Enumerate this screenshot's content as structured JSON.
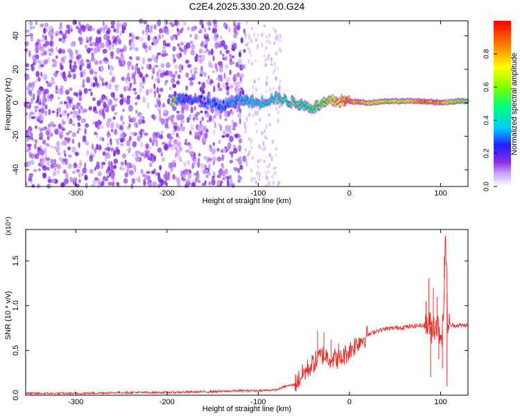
{
  "figure": {
    "title": "C2E4.2025.330.20.20.G24"
  },
  "chart_data": [
    {
      "type": "heatmap",
      "title": "C2E4.2025.330.20.20.G24",
      "xlabel": "Height of straight line (km)",
      "ylabel": "Frequency (Hz)",
      "xlim": [
        -355,
        130
      ],
      "ylim": [
        -50,
        49
      ],
      "x_ticks": [
        -300,
        -200,
        -100,
        0,
        100
      ],
      "x_tick_labels": [
        "-300",
        "-200",
        "-100",
        "0",
        "100"
      ],
      "y_ticks": [
        -40,
        -20,
        0,
        20,
        40
      ],
      "y_tick_labels": [
        "-40",
        "-20",
        "0",
        "20",
        "40"
      ],
      "grid": false,
      "colorbar": {
        "label": "Normalized spectral amplitude",
        "range": [
          0.0,
          1.0
        ],
        "ticks": [
          0.0,
          0.2,
          0.4,
          0.6,
          0.8
        ],
        "tick_labels": [
          "0.0",
          "0.2",
          "0.4",
          "0.6",
          "0.8"
        ],
        "colormap": [
          "#ffffff",
          "#c8a0ff",
          "#8a2be2",
          "#2020ff",
          "#00c8ff",
          "#00ff80",
          "#80ff00",
          "#ffff00",
          "#ff8000",
          "#ff0000"
        ]
      },
      "features": {
        "noise_region_x": [
          -355,
          -115
        ],
        "sparse_region_x": [
          -115,
          -75
        ],
        "signal_onset_x": -195,
        "signal_center_frequency": 0,
        "signal_points": [
          [
            -190,
            2,
            0.3
          ],
          [
            -180,
            3,
            0.25
          ],
          [
            -160,
            1,
            0.3
          ],
          [
            -140,
            -2,
            0.3
          ],
          [
            -120,
            2,
            0.35
          ],
          [
            -100,
            0,
            0.4
          ],
          [
            -80,
            3,
            0.45
          ],
          [
            -60,
            0,
            0.5
          ],
          [
            -40,
            -3,
            0.5
          ],
          [
            -20,
            1,
            0.7
          ],
          [
            0,
            1,
            0.85
          ],
          [
            20,
            0,
            0.75
          ],
          [
            40,
            1,
            0.65
          ],
          [
            60,
            1,
            0.65
          ],
          [
            80,
            1,
            0.85
          ],
          [
            100,
            0,
            0.8
          ],
          [
            120,
            1,
            0.6
          ]
        ]
      }
    },
    {
      "type": "line",
      "title": "",
      "xlabel": "Height of straight line (km)",
      "ylabel": "SNR (10 * v/v)",
      "y_multiplier": "(x10⁴)",
      "xlim": [
        -355,
        130
      ],
      "ylim": [
        0,
        1.85
      ],
      "x_ticks": [
        -300,
        -200,
        -100,
        0,
        100
      ],
      "x_tick_labels": [
        "-300",
        "-200",
        "-100",
        "0",
        "100"
      ],
      "y_ticks": [
        0.0,
        0.5,
        1.0,
        1.5
      ],
      "y_tick_labels": [
        "0.0",
        "0.5",
        "1.0",
        "1.5"
      ],
      "grid": false,
      "line_color": "#e8302a",
      "x": [
        -355,
        -300,
        -250,
        -200,
        -150,
        -120,
        -100,
        -80,
        -70,
        -60,
        -50,
        -40,
        -30,
        -20,
        -10,
        0,
        10,
        20,
        30,
        40,
        50,
        60,
        70,
        80,
        85,
        90,
        95,
        100,
        103,
        105,
        108,
        110,
        120,
        130
      ],
      "y": [
        0.02,
        0.02,
        0.03,
        0.03,
        0.04,
        0.05,
        0.05,
        0.06,
        0.1,
        0.12,
        0.25,
        0.35,
        0.45,
        0.42,
        0.4,
        0.5,
        0.6,
        0.67,
        0.72,
        0.74,
        0.75,
        0.76,
        0.77,
        0.78,
        0.8,
        0.75,
        0.8,
        0.7,
        0.75,
        1.85,
        0.78,
        0.78,
        0.78,
        0.78
      ],
      "spikes": [
        [
          -35,
          0.72
        ],
        [
          -28,
          0.7
        ],
        [
          -20,
          0.62
        ],
        [
          -12,
          0.58
        ],
        [
          -5,
          0.5
        ],
        [
          84,
          1.05
        ],
        [
          87,
          1.3
        ],
        [
          89,
          0.2
        ],
        [
          92,
          1.2
        ],
        [
          96,
          1.1
        ],
        [
          98,
          0.4
        ],
        [
          102,
          0.3
        ],
        [
          104,
          1.55
        ],
        [
          105,
          1.85
        ],
        [
          107,
          0.1
        ]
      ]
    }
  ]
}
